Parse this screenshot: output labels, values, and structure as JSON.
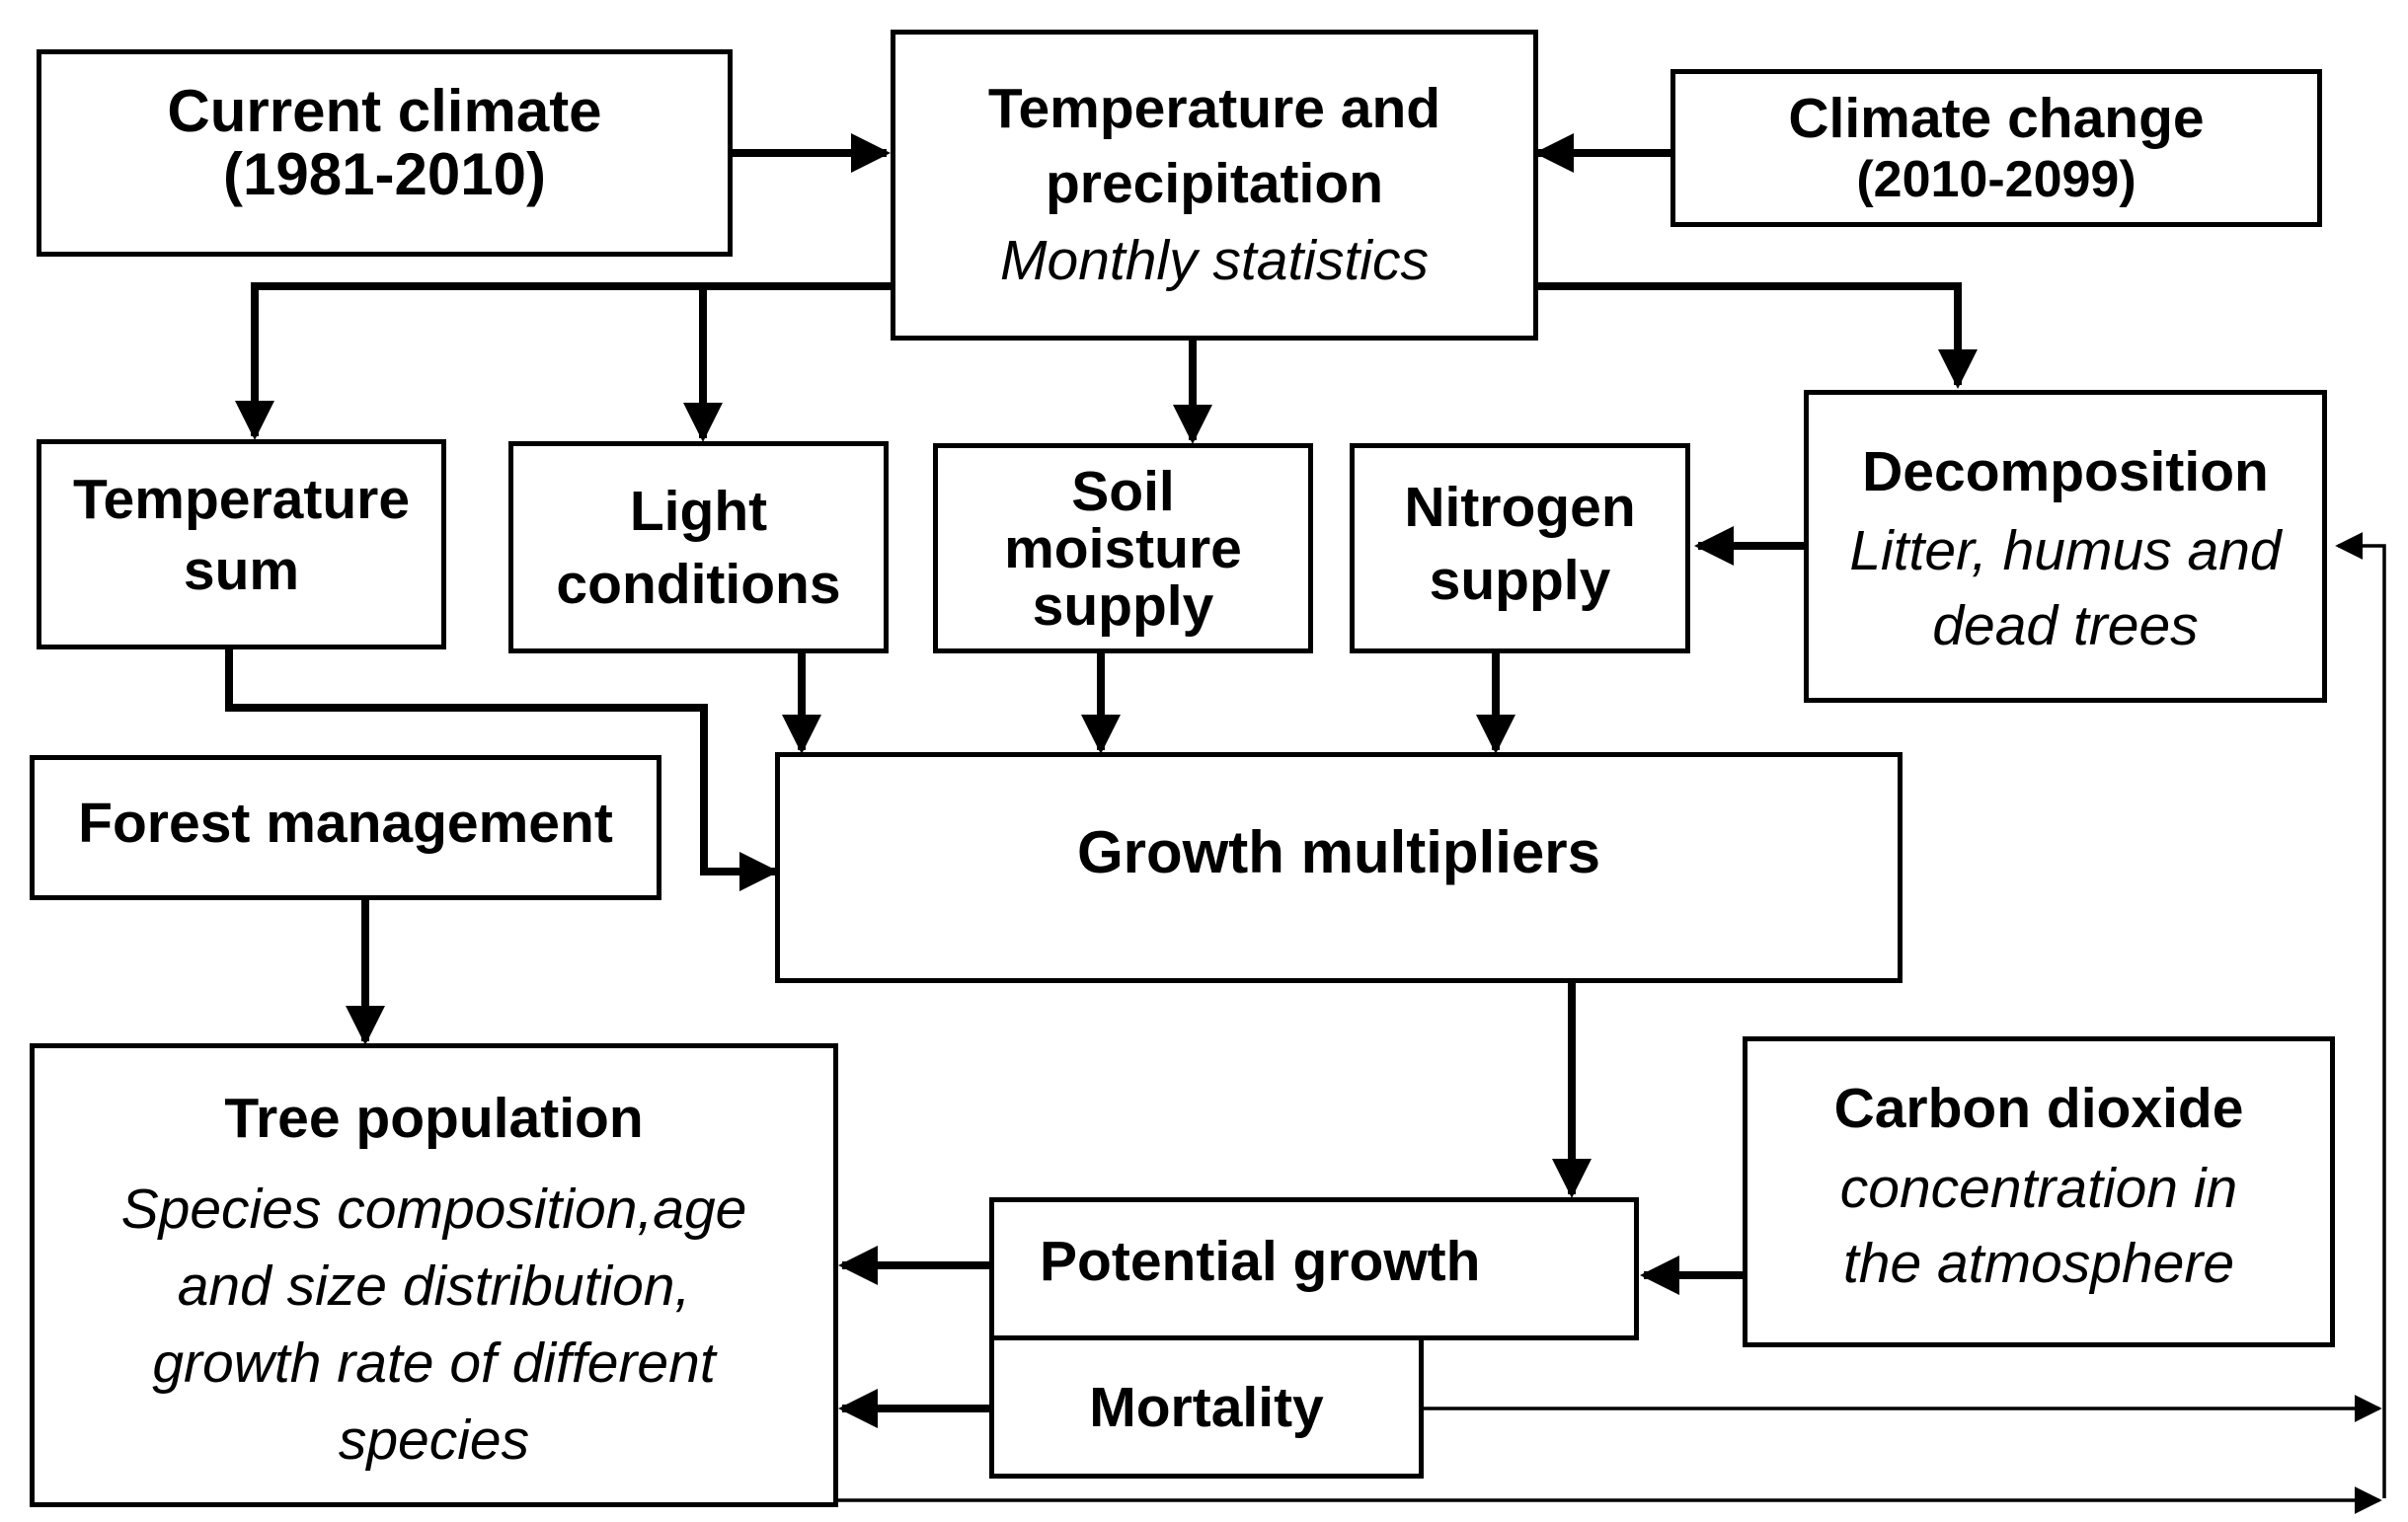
{
  "nodes": {
    "current_climate": {
      "title": "Current climate",
      "subtitle": "(1981-2010)"
    },
    "temp_precip": {
      "title_line1": "Temperature and",
      "title_line2": "precipitation",
      "note": "Monthly statistics"
    },
    "climate_change": {
      "title": "Climate change",
      "subtitle": "(2010-2099)"
    },
    "temperature_sum": {
      "line1": "Temperature",
      "line2": "sum"
    },
    "light_conditions": {
      "line1": "Light",
      "line2": "conditions"
    },
    "soil_moisture": {
      "line1": "Soil",
      "line2": "moisture",
      "line3": "supply"
    },
    "nitrogen_supply": {
      "line1": "Nitrogen",
      "line2": "supply"
    },
    "decomposition": {
      "title": "Decomposition",
      "note_line1": "Litter, humus and",
      "note_line2": "dead trees"
    },
    "forest_management": {
      "title": "Forest management"
    },
    "growth_multipliers": {
      "title": "Growth multipliers"
    },
    "tree_population": {
      "title": "Tree population",
      "note_line1": "Species composition,age",
      "note_line2": "and size distribution,",
      "note_line3": "growth rate of different",
      "note_line4": "species"
    },
    "potential_growth": {
      "title": "Potential growth"
    },
    "mortality": {
      "title": "Mortality"
    },
    "carbon_dioxide": {
      "title": "Carbon dioxide",
      "note_line1": "concentration in",
      "note_line2": "the atmosphere"
    }
  },
  "edges": [
    {
      "from": "current_climate",
      "to": "temp_precip"
    },
    {
      "from": "climate_change",
      "to": "temp_precip"
    },
    {
      "from": "temp_precip",
      "to": "temperature_sum"
    },
    {
      "from": "temp_precip",
      "to": "light_conditions"
    },
    {
      "from": "temp_precip",
      "to": "soil_moisture"
    },
    {
      "from": "temp_precip",
      "to": "decomposition"
    },
    {
      "from": "decomposition",
      "to": "nitrogen_supply"
    },
    {
      "from": "temperature_sum",
      "to": "growth_multipliers"
    },
    {
      "from": "light_conditions",
      "to": "growth_multipliers"
    },
    {
      "from": "soil_moisture",
      "to": "growth_multipliers"
    },
    {
      "from": "nitrogen_supply",
      "to": "growth_multipliers"
    },
    {
      "from": "forest_management",
      "to": "tree_population"
    },
    {
      "from": "growth_multipliers",
      "to": "potential_growth"
    },
    {
      "from": "carbon_dioxide",
      "to": "potential_growth"
    },
    {
      "from": "potential_growth",
      "to": "tree_population"
    },
    {
      "from": "mortality",
      "to": "tree_population"
    },
    {
      "from": "mortality",
      "to": "decomposition"
    },
    {
      "from": "tree_population",
      "to": "decomposition"
    }
  ]
}
